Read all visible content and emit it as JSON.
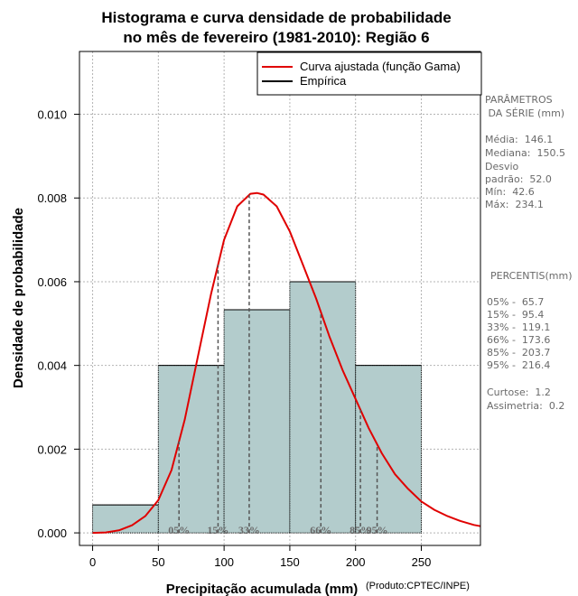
{
  "chart_data": {
    "type": "bar",
    "title_lines": [
      "Histograma e curva densidade de probabilidade",
      "no mês de fevereiro (1981-2010): Região 6"
    ],
    "xlabel": "Precipitação acumulada (mm)",
    "ylabel": "Densidade de probabilidade",
    "credit": "(Produto:CPTEC/INPE)",
    "xlim": [
      -10,
      295
    ],
    "ylim": [
      -0.0003,
      0.0115
    ],
    "x_ticks": [
      0,
      50,
      100,
      150,
      200,
      250
    ],
    "x_tick_labels": [
      "0",
      "50",
      "100",
      "150",
      "200",
      "250"
    ],
    "y_ticks": [
      0.0,
      0.002,
      0.004,
      0.006,
      0.008,
      0.01
    ],
    "y_tick_labels": [
      "0.000",
      "0.002",
      "0.004",
      "0.006",
      "0.008",
      "0.010"
    ],
    "grid": true,
    "histogram": {
      "bins": [
        {
          "from": 0,
          "to": 50,
          "density": 0.000667
        },
        {
          "from": 50,
          "to": 100,
          "density": 0.004
        },
        {
          "from": 100,
          "to": 150,
          "density": 0.00533
        },
        {
          "from": 150,
          "to": 200,
          "density": 0.006
        },
        {
          "from": 200,
          "to": 250,
          "density": 0.004
        }
      ],
      "fill": "#b3cccc"
    },
    "fitted_curve": {
      "name": "Curva ajustada (função Gama)",
      "color": "#e00000",
      "x": [
        0,
        10,
        20,
        30,
        40,
        50,
        60,
        70,
        80,
        90,
        100,
        110,
        120,
        125,
        130,
        140,
        150,
        160,
        170,
        180,
        190,
        200,
        210,
        220,
        230,
        240,
        250,
        260,
        270,
        280,
        290,
        295
      ],
      "y": [
        0.0,
        1e-05,
        6e-05,
        0.00018,
        0.0004,
        0.00078,
        0.0015,
        0.0027,
        0.0042,
        0.0057,
        0.007,
        0.0078,
        0.0081,
        0.00812,
        0.00808,
        0.0078,
        0.0072,
        0.0064,
        0.0056,
        0.0047,
        0.0039,
        0.0032,
        0.0025,
        0.0019,
        0.0014,
        0.00105,
        0.00075,
        0.00055,
        0.0004,
        0.00028,
        0.00019,
        0.00016
      ]
    },
    "legend": [
      {
        "label": "Curva ajustada (função Gama)",
        "color": "#e00000"
      },
      {
        "label": "Empírica",
        "color": "#000000"
      }
    ],
    "legend_position": "top-right",
    "percentiles": [
      {
        "label": "05%",
        "value": 65.7
      },
      {
        "label": "15%",
        "value": 95.4
      },
      {
        "label": "33%",
        "value": 119.1
      },
      {
        "label": "66%",
        "value": 173.6
      },
      {
        "label": "85%",
        "value": 203.7
      },
      {
        "label": "95%",
        "value": 216.4
      }
    ]
  },
  "sidebar": {
    "params_title": [
      "PARÂMETROS",
      " DA SÉRIE (mm)"
    ],
    "params": [
      "Média:  146.1",
      "Mediana:  150.5",
      "Desvio",
      "padrão:  52.0",
      "Mín:  42.6",
      "Máx:  234.1"
    ],
    "percentis_title": "PERCENTIS(mm)",
    "percentis": [
      "05% -  65.7",
      "15% -  95.4",
      "33% -  119.1",
      "66% -  173.6",
      "85% -  203.7",
      "95% -  216.4"
    ],
    "stats": [
      "Curtose:  1.2",
      "Assimetria:  0.2"
    ]
  },
  "colors": {
    "bar_fill": "#b3cccc",
    "curve": "#e00000",
    "grid": "#b4b4b4",
    "dashed": "#555555"
  }
}
